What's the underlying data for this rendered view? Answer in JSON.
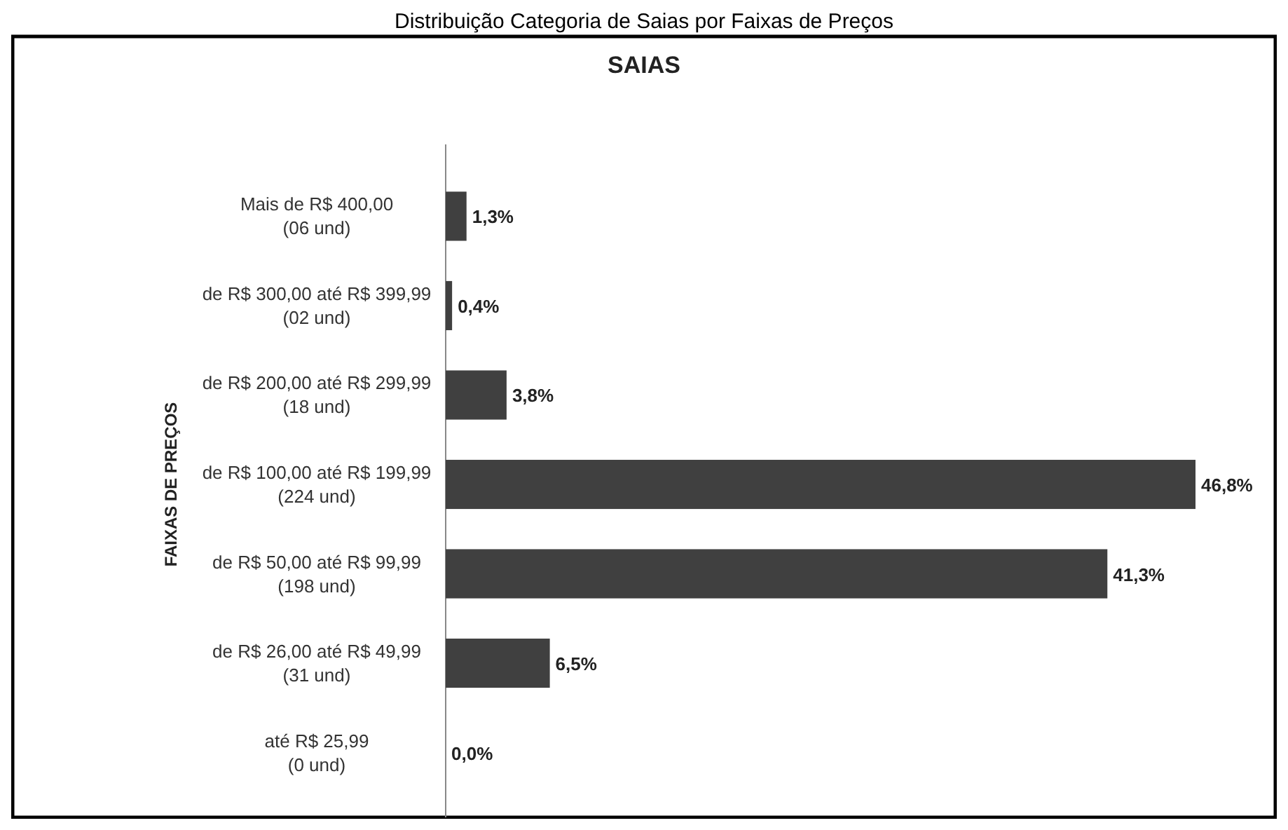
{
  "chart_data": {
    "type": "bar",
    "orientation": "horizontal",
    "title": "SAIAS",
    "subtitle": "Distribuição Categoria de Saias por Faixas de Preços",
    "ylabel": "FAIXAS DE PREÇOS",
    "categories": [
      "Mais de R$ 400,00\n(06 und)",
      "de R$ 300,00 até R$ 399,99\n(02 und)",
      "de R$ 200,00 até R$ 299,99\n(18 und)",
      "de R$ 100,00 até R$ 199,99\n(224 und)",
      "de R$ 50,00 até R$ 99,99\n(198 und)",
      "de R$ 26,00 até R$ 49,99\n(31 und)",
      "até R$ 25,99\n(0 und)"
    ],
    "values": [
      1.3,
      0.4,
      3.8,
      46.8,
      41.3,
      6.5,
      0.0
    ],
    "value_labels": [
      "1,3%",
      "0,4%",
      "3,8%",
      "46,8%",
      "41,3%",
      "6,5%",
      "0,0%"
    ],
    "color": "#404040"
  }
}
